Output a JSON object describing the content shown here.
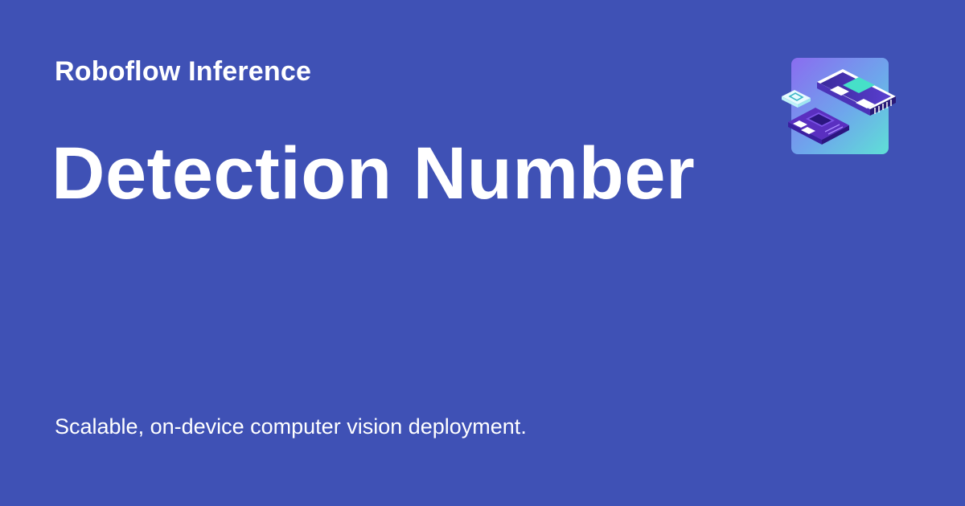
{
  "header": {
    "brand": "Roboflow Inference"
  },
  "main": {
    "title": "Detection Number",
    "tagline": "Scalable, on-device computer vision deployment."
  },
  "logo": {
    "icon": "hardware-device-icon"
  },
  "colors": {
    "background": "#3f51b5",
    "text": "#ffffff",
    "logo_gradient_start": "#8a6cf0",
    "logo_gradient_end": "#5fe0d6"
  }
}
